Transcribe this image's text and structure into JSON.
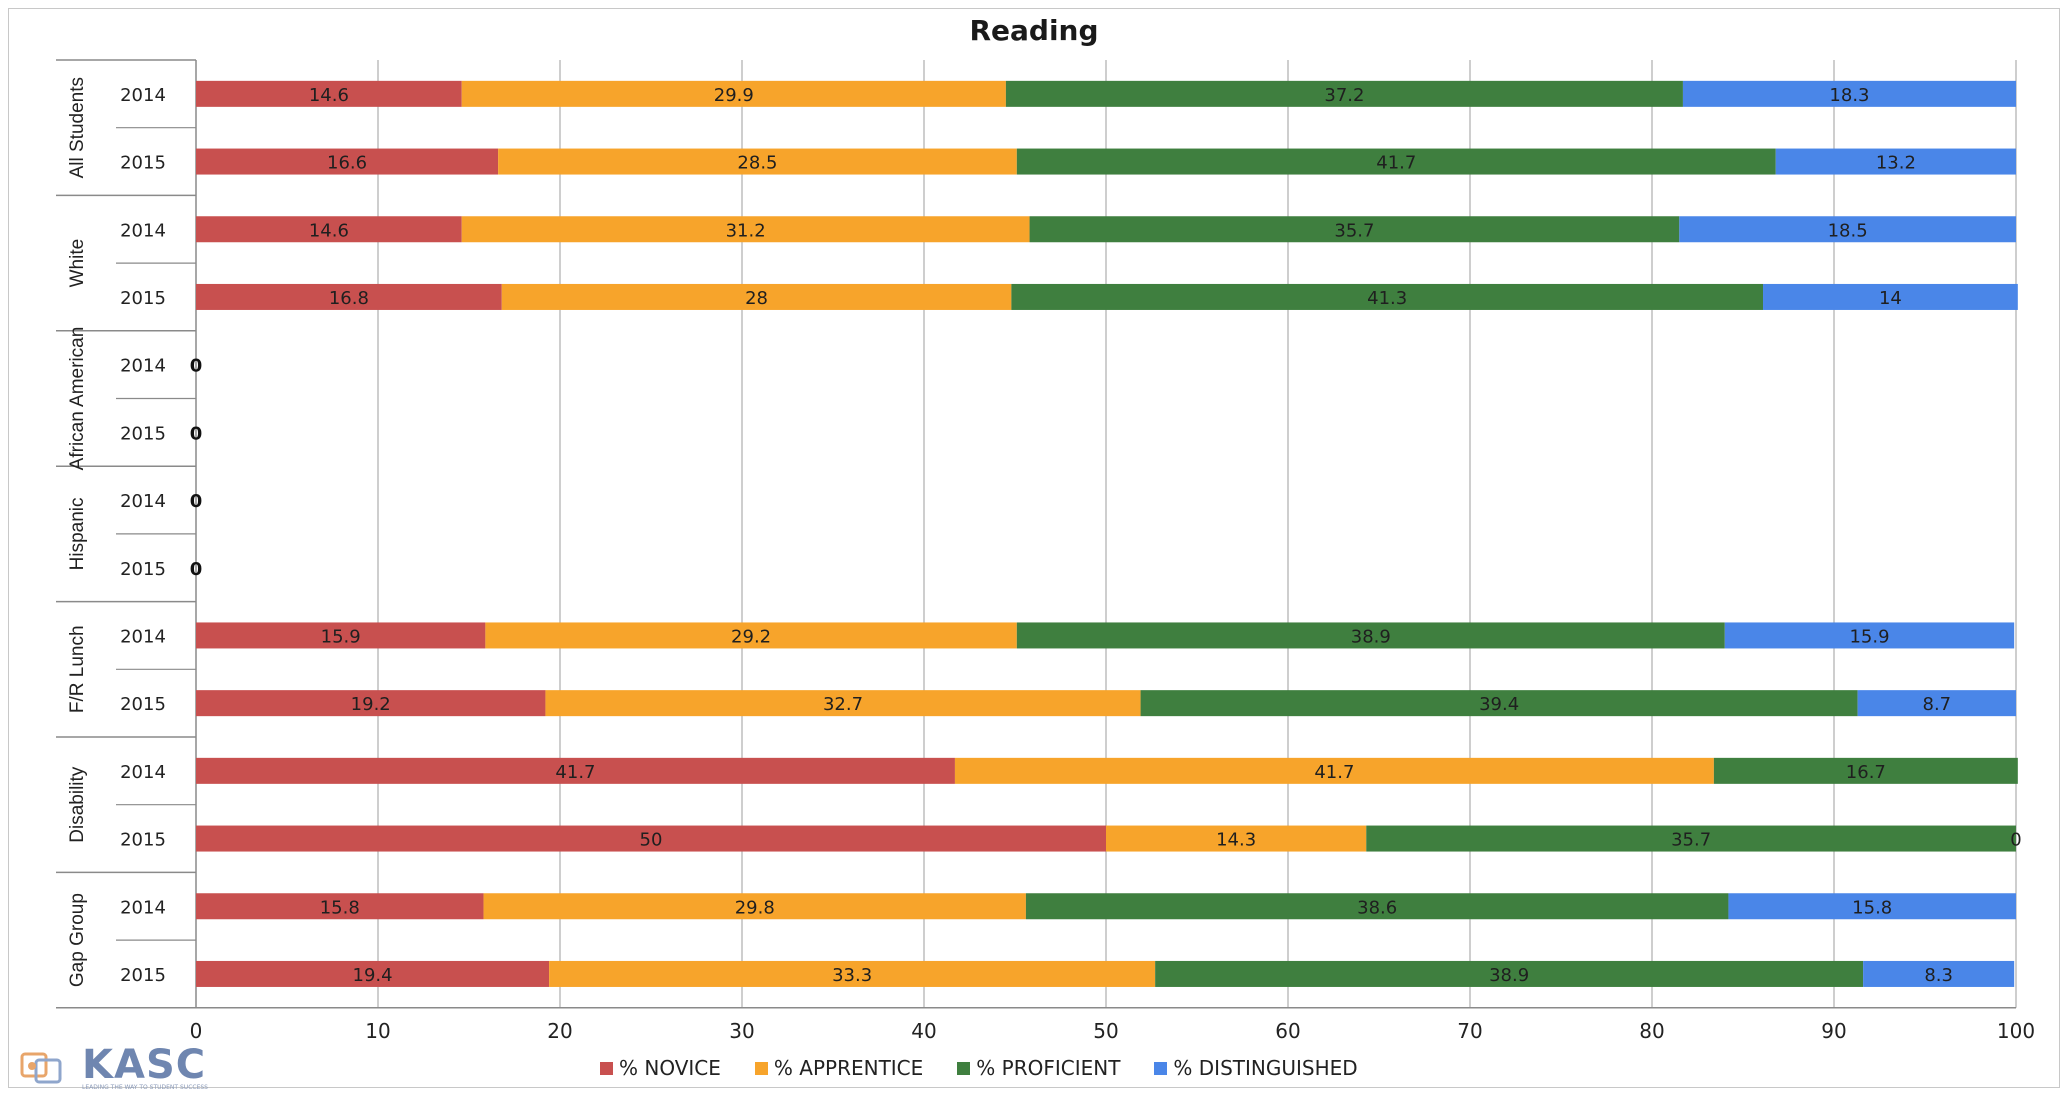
{
  "chart_data": {
    "type": "bar",
    "orientation": "horizontal",
    "stacked": true,
    "title": "Reading",
    "xlim": [
      0,
      100
    ],
    "xticks": [
      0,
      10,
      20,
      30,
      40,
      50,
      60,
      70,
      80,
      90,
      100
    ],
    "grid": true,
    "legend_position": "bottom",
    "groups": [
      {
        "label": "All Students",
        "rows": [
          {
            "year": "2014",
            "values": [
              14.6,
              29.9,
              37.2,
              18.3
            ]
          },
          {
            "year": "2015",
            "values": [
              16.6,
              28.5,
              41.7,
              13.2
            ]
          }
        ]
      },
      {
        "label": "White",
        "rows": [
          {
            "year": "2014",
            "values": [
              14.6,
              31.2,
              35.7,
              18.5
            ]
          },
          {
            "year": "2015",
            "values": [
              16.8,
              28,
              41.3,
              14
            ]
          }
        ]
      },
      {
        "label": "African American",
        "rows": [
          {
            "year": "2014",
            "values": [
              0,
              0,
              0,
              0
            ],
            "empty_label": "0"
          },
          {
            "year": "2015",
            "values": [
              0,
              0,
              0,
              0
            ],
            "empty_label": "0"
          }
        ]
      },
      {
        "label": "Hispanic",
        "rows": [
          {
            "year": "2014",
            "values": [
              0,
              0,
              0,
              0
            ],
            "empty_label": "0"
          },
          {
            "year": "2015",
            "values": [
              0,
              0,
              0,
              0
            ],
            "empty_label": "0"
          }
        ]
      },
      {
        "label": "F/R Lunch",
        "rows": [
          {
            "year": "2014",
            "values": [
              15.9,
              29.2,
              38.9,
              15.9
            ]
          },
          {
            "year": "2015",
            "values": [
              19.2,
              32.7,
              39.4,
              8.7
            ]
          }
        ]
      },
      {
        "label": "Disability",
        "rows": [
          {
            "year": "2014",
            "values": [
              41.7,
              41.7,
              16.7,
              0
            ],
            "hide_zero": true
          },
          {
            "year": "2015",
            "values": [
              50,
              14.3,
              35.7,
              0
            ],
            "show_zero": true
          }
        ]
      },
      {
        "label": "Gap Group",
        "rows": [
          {
            "year": "2014",
            "values": [
              15.8,
              29.8,
              38.6,
              15.8
            ]
          },
          {
            "year": "2015",
            "values": [
              19.4,
              33.3,
              38.9,
              8.3
            ]
          }
        ]
      }
    ],
    "series": [
      {
        "name": "% NOVICE",
        "color": "#c8504f"
      },
      {
        "name": "% APPRENTICE",
        "color": "#f7a42b"
      },
      {
        "name": "% PROFICIENT",
        "color": "#3f7f3f"
      },
      {
        "name": "% DISTINGUISHED",
        "color": "#4a86e8"
      }
    ]
  },
  "branding": {
    "logo_text": "KASC",
    "logo_tagline": "LEADING THE WAY TO STUDENT SUCCESS"
  }
}
